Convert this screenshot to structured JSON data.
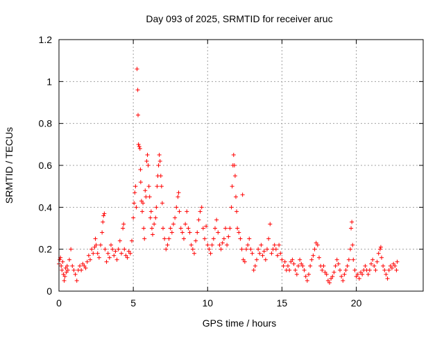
{
  "chart_data": {
    "type": "scatter",
    "title": "Day 093 of 2025, SRMTID for receiver aruc",
    "xlabel": "GPS time / hours",
    "ylabel": "SRMTID / TECUs",
    "xlim": [
      0,
      24.5
    ],
    "ylim": [
      0,
      1.2
    ],
    "xticks": [
      0,
      5,
      10,
      15,
      20
    ],
    "xtick_labels": [
      "0",
      "5",
      "10",
      "15",
      "20"
    ],
    "yticks": [
      0,
      0.2,
      0.4,
      0.6,
      0.8,
      1.0,
      1.2
    ],
    "ytick_labels": [
      "0",
      "0.2",
      "0.4",
      "0.6",
      "0.8",
      "1",
      "1.2"
    ],
    "grid": true,
    "marker": "+",
    "series": [
      {
        "name": "SRMTID",
        "color": "#ff0000",
        "points": [
          [
            0.0,
            0.13
          ],
          [
            0.05,
            0.15
          ],
          [
            0.1,
            0.16
          ],
          [
            0.15,
            0.12
          ],
          [
            0.2,
            0.1
          ],
          [
            0.25,
            0.14
          ],
          [
            0.3,
            0.08
          ],
          [
            0.35,
            0.05
          ],
          [
            0.4,
            0.07
          ],
          [
            0.45,
            0.11
          ],
          [
            0.5,
            0.09
          ],
          [
            0.55,
            0.12
          ],
          [
            0.6,
            0.1
          ],
          [
            0.7,
            0.15
          ],
          [
            0.8,
            0.2
          ],
          [
            0.9,
            0.12
          ],
          [
            1.0,
            0.1
          ],
          [
            1.1,
            0.08
          ],
          [
            1.2,
            0.05
          ],
          [
            1.3,
            0.1
          ],
          [
            1.4,
            0.12
          ],
          [
            1.5,
            0.1
          ],
          [
            1.6,
            0.13
          ],
          [
            1.7,
            0.12
          ],
          [
            1.8,
            0.11
          ],
          [
            1.9,
            0.14
          ],
          [
            2.0,
            0.17
          ],
          [
            2.1,
            0.15
          ],
          [
            2.2,
            0.2
          ],
          [
            2.3,
            0.18
          ],
          [
            2.4,
            0.21
          ],
          [
            2.45,
            0.25
          ],
          [
            2.5,
            0.22
          ],
          [
            2.6,
            0.18
          ],
          [
            2.7,
            0.16
          ],
          [
            2.8,
            0.22
          ],
          [
            2.9,
            0.28
          ],
          [
            2.95,
            0.33
          ],
          [
            3.0,
            0.36
          ],
          [
            3.05,
            0.37
          ],
          [
            3.1,
            0.2
          ],
          [
            3.2,
            0.14
          ],
          [
            3.3,
            0.18
          ],
          [
            3.4,
            0.16
          ],
          [
            3.5,
            0.22
          ],
          [
            3.6,
            0.2
          ],
          [
            3.7,
            0.17
          ],
          [
            3.8,
            0.19
          ],
          [
            3.9,
            0.15
          ],
          [
            4.0,
            0.2
          ],
          [
            4.1,
            0.24
          ],
          [
            4.2,
            0.18
          ],
          [
            4.3,
            0.3
          ],
          [
            4.35,
            0.32
          ],
          [
            4.4,
            0.2
          ],
          [
            4.5,
            0.17
          ],
          [
            4.6,
            0.16
          ],
          [
            4.7,
            0.19
          ],
          [
            4.8,
            0.18
          ],
          [
            4.9,
            0.24
          ],
          [
            5.0,
            0.35
          ],
          [
            5.05,
            0.42
          ],
          [
            5.1,
            0.47
          ],
          [
            5.15,
            0.5
          ],
          [
            5.2,
            0.4
          ],
          [
            5.25,
            1.06
          ],
          [
            5.3,
            0.96
          ],
          [
            5.32,
            0.84
          ],
          [
            5.35,
            0.7
          ],
          [
            5.4,
            0.69
          ],
          [
            5.45,
            0.68
          ],
          [
            5.48,
            0.58
          ],
          [
            5.5,
            0.52
          ],
          [
            5.55,
            0.43
          ],
          [
            5.6,
            0.38
          ],
          [
            5.65,
            0.42
          ],
          [
            5.7,
            0.3
          ],
          [
            5.75,
            0.25
          ],
          [
            5.8,
            0.48
          ],
          [
            5.85,
            0.45
          ],
          [
            5.9,
            0.62
          ],
          [
            5.95,
            0.65
          ],
          [
            6.0,
            0.6
          ],
          [
            6.05,
            0.5
          ],
          [
            6.1,
            0.45
          ],
          [
            6.15,
            0.35
          ],
          [
            6.2,
            0.38
          ],
          [
            6.25,
            0.3
          ],
          [
            6.3,
            0.27
          ],
          [
            6.4,
            0.32
          ],
          [
            6.5,
            0.35
          ],
          [
            6.55,
            0.4
          ],
          [
            6.6,
            0.5
          ],
          [
            6.65,
            0.55
          ],
          [
            6.7,
            0.6
          ],
          [
            6.75,
            0.65
          ],
          [
            6.8,
            0.62
          ],
          [
            6.85,
            0.55
          ],
          [
            6.9,
            0.5
          ],
          [
            6.95,
            0.42
          ],
          [
            7.0,
            0.3
          ],
          [
            7.1,
            0.25
          ],
          [
            7.2,
            0.2
          ],
          [
            7.3,
            0.22
          ],
          [
            7.4,
            0.25
          ],
          [
            7.5,
            0.3
          ],
          [
            7.6,
            0.28
          ],
          [
            7.7,
            0.32
          ],
          [
            7.8,
            0.35
          ],
          [
            7.9,
            0.4
          ],
          [
            8.0,
            0.45
          ],
          [
            8.05,
            0.47
          ],
          [
            8.1,
            0.38
          ],
          [
            8.2,
            0.3
          ],
          [
            8.3,
            0.28
          ],
          [
            8.4,
            0.25
          ],
          [
            8.5,
            0.32
          ],
          [
            8.6,
            0.38
          ],
          [
            8.7,
            0.3
          ],
          [
            8.8,
            0.28
          ],
          [
            8.9,
            0.22
          ],
          [
            9.0,
            0.2
          ],
          [
            9.1,
            0.18
          ],
          [
            9.2,
            0.24
          ],
          [
            9.3,
            0.28
          ],
          [
            9.4,
            0.34
          ],
          [
            9.5,
            0.38
          ],
          [
            9.6,
            0.4
          ],
          [
            9.7,
            0.3
          ],
          [
            9.8,
            0.25
          ],
          [
            9.9,
            0.31
          ],
          [
            10.0,
            0.22
          ],
          [
            10.1,
            0.2
          ],
          [
            10.2,
            0.18
          ],
          [
            10.3,
            0.22
          ],
          [
            10.4,
            0.25
          ],
          [
            10.5,
            0.3
          ],
          [
            10.6,
            0.34
          ],
          [
            10.7,
            0.28
          ],
          [
            10.8,
            0.22
          ],
          [
            10.9,
            0.2
          ],
          [
            11.0,
            0.23
          ],
          [
            11.1,
            0.25
          ],
          [
            11.2,
            0.3
          ],
          [
            11.3,
            0.22
          ],
          [
            11.4,
            0.26
          ],
          [
            11.5,
            0.3
          ],
          [
            11.6,
            0.4
          ],
          [
            11.65,
            0.5
          ],
          [
            11.7,
            0.6
          ],
          [
            11.75,
            0.65
          ],
          [
            11.8,
            0.6
          ],
          [
            11.85,
            0.55
          ],
          [
            11.9,
            0.45
          ],
          [
            11.95,
            0.38
          ],
          [
            12.0,
            0.3
          ],
          [
            12.1,
            0.28
          ],
          [
            12.2,
            0.25
          ],
          [
            12.3,
            0.2
          ],
          [
            12.35,
            0.46
          ],
          [
            12.4,
            0.15
          ],
          [
            12.5,
            0.14
          ],
          [
            12.6,
            0.2
          ],
          [
            12.7,
            0.22
          ],
          [
            12.8,
            0.25
          ],
          [
            12.9,
            0.2
          ],
          [
            13.0,
            0.18
          ],
          [
            13.1,
            0.1
          ],
          [
            13.2,
            0.12
          ],
          [
            13.3,
            0.15
          ],
          [
            13.4,
            0.2
          ],
          [
            13.5,
            0.18
          ],
          [
            13.6,
            0.22
          ],
          [
            13.7,
            0.17
          ],
          [
            13.8,
            0.19
          ],
          [
            13.9,
            0.15
          ],
          [
            14.0,
            0.2
          ],
          [
            14.1,
            0.25
          ],
          [
            14.2,
            0.32
          ],
          [
            14.3,
            0.18
          ],
          [
            14.4,
            0.2
          ],
          [
            14.5,
            0.22
          ],
          [
            14.6,
            0.2
          ],
          [
            14.7,
            0.17
          ],
          [
            14.8,
            0.22
          ],
          [
            14.9,
            0.18
          ],
          [
            15.0,
            0.15
          ],
          [
            15.1,
            0.12
          ],
          [
            15.2,
            0.14
          ],
          [
            15.3,
            0.1
          ],
          [
            15.4,
            0.12
          ],
          [
            15.5,
            0.1
          ],
          [
            15.6,
            0.14
          ],
          [
            15.7,
            0.15
          ],
          [
            15.8,
            0.13
          ],
          [
            15.9,
            0.1
          ],
          [
            16.0,
            0.08
          ],
          [
            16.1,
            0.12
          ],
          [
            16.2,
            0.15
          ],
          [
            16.3,
            0.13
          ],
          [
            16.4,
            0.12
          ],
          [
            16.5,
            0.1
          ],
          [
            16.6,
            0.07
          ],
          [
            16.7,
            0.05
          ],
          [
            16.8,
            0.08
          ],
          [
            16.9,
            0.12
          ],
          [
            17.0,
            0.15
          ],
          [
            17.1,
            0.17
          ],
          [
            17.2,
            0.2
          ],
          [
            17.3,
            0.23
          ],
          [
            17.4,
            0.22
          ],
          [
            17.5,
            0.16
          ],
          [
            17.6,
            0.12
          ],
          [
            17.7,
            0.1
          ],
          [
            17.8,
            0.12
          ],
          [
            17.9,
            0.09
          ],
          [
            18.0,
            0.08
          ],
          [
            18.1,
            0.05
          ],
          [
            18.2,
            0.04
          ],
          [
            18.3,
            0.06
          ],
          [
            18.4,
            0.07
          ],
          [
            18.5,
            0.09
          ],
          [
            18.6,
            0.12
          ],
          [
            18.7,
            0.15
          ],
          [
            18.8,
            0.13
          ],
          [
            18.9,
            0.1
          ],
          [
            19.0,
            0.07
          ],
          [
            19.1,
            0.05
          ],
          [
            19.2,
            0.08
          ],
          [
            19.3,
            0.1
          ],
          [
            19.4,
            0.12
          ],
          [
            19.5,
            0.15
          ],
          [
            19.6,
            0.2
          ],
          [
            19.65,
            0.3
          ],
          [
            19.7,
            0.33
          ],
          [
            19.75,
            0.22
          ],
          [
            19.8,
            0.15
          ],
          [
            19.9,
            0.1
          ],
          [
            20.0,
            0.07
          ],
          [
            20.1,
            0.08
          ],
          [
            20.2,
            0.06
          ],
          [
            20.3,
            0.09
          ],
          [
            20.4,
            0.08
          ],
          [
            20.5,
            0.1
          ],
          [
            20.6,
            0.12
          ],
          [
            20.7,
            0.1
          ],
          [
            20.8,
            0.08
          ],
          [
            20.9,
            0.1
          ],
          [
            21.0,
            0.13
          ],
          [
            21.1,
            0.15
          ],
          [
            21.2,
            0.12
          ],
          [
            21.3,
            0.1
          ],
          [
            21.4,
            0.14
          ],
          [
            21.5,
            0.18
          ],
          [
            21.6,
            0.2
          ],
          [
            21.65,
            0.21
          ],
          [
            21.7,
            0.16
          ],
          [
            21.8,
            0.12
          ],
          [
            21.9,
            0.1
          ],
          [
            22.0,
            0.08
          ],
          [
            22.1,
            0.06
          ],
          [
            22.2,
            0.1
          ],
          [
            22.3,
            0.12
          ],
          [
            22.4,
            0.11
          ],
          [
            22.5,
            0.13
          ],
          [
            22.6,
            0.12
          ],
          [
            22.7,
            0.1
          ],
          [
            22.75,
            0.14
          ]
        ]
      }
    ]
  }
}
